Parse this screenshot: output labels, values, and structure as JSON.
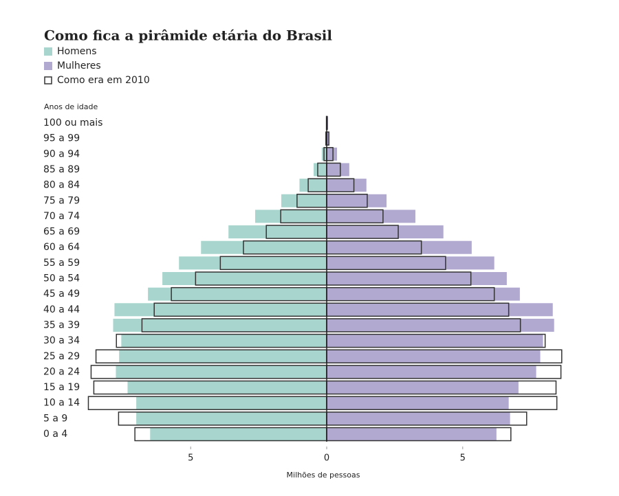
{
  "chart_data": {
    "type": "pyramid",
    "title": "Como fica a pirâmide etária do Brasil",
    "y_label": "Anos de idade",
    "x_label": "Milhões de pessoas",
    "categories": [
      "100 ou mais",
      "95 a 99",
      "90 a 94",
      "85 a 89",
      "80 a 84",
      "75 a 79",
      "70 a 74",
      "65 a 69",
      "60 a 64",
      "55 a 59",
      "50 a 54",
      "45 a 49",
      "40 a 44",
      "35 a 39",
      "30 a 34",
      "25 a 29",
      "20 a 24",
      "15 a 19",
      "10 a 14",
      "5 a 9",
      "0 a 4"
    ],
    "series": [
      {
        "name": "Homens",
        "color": "#a8d5cd",
        "side": "left",
        "values": [
          0.02,
          0.05,
          0.18,
          0.48,
          1.0,
          1.67,
          2.63,
          3.61,
          4.62,
          5.43,
          6.04,
          6.57,
          7.8,
          7.85,
          7.55,
          7.63,
          7.75,
          7.32,
          7.0,
          7.0,
          6.49
        ]
      },
      {
        "name": "Mulheres",
        "color": "#b1a9d0",
        "side": "right",
        "values": [
          0.05,
          0.1,
          0.38,
          0.83,
          1.46,
          2.2,
          3.26,
          4.29,
          5.33,
          6.16,
          6.62,
          7.1,
          8.31,
          8.36,
          7.95,
          7.85,
          7.7,
          7.05,
          6.69,
          6.74,
          6.24
        ]
      }
    ],
    "outline_2010": {
      "name": "Como era em 2010",
      "color": "#333333",
      "left": [
        0.01,
        0.03,
        0.1,
        0.33,
        0.68,
        1.09,
        1.69,
        2.22,
        3.06,
        3.91,
        4.82,
        5.71,
        6.34,
        6.79,
        7.73,
        8.48,
        8.66,
        8.56,
        8.76,
        7.65,
        7.05
      ],
      "right": [
        0.02,
        0.08,
        0.23,
        0.5,
        1.0,
        1.49,
        2.07,
        2.63,
        3.48,
        4.37,
        5.3,
        6.16,
        6.69,
        7.12,
        8.03,
        8.64,
        8.61,
        8.43,
        8.46,
        7.35,
        6.77
      ]
    },
    "xlim": [
      -9,
      9
    ],
    "xticks": [
      {
        "value": -5,
        "label": "5"
      },
      0,
      5
    ]
  }
}
